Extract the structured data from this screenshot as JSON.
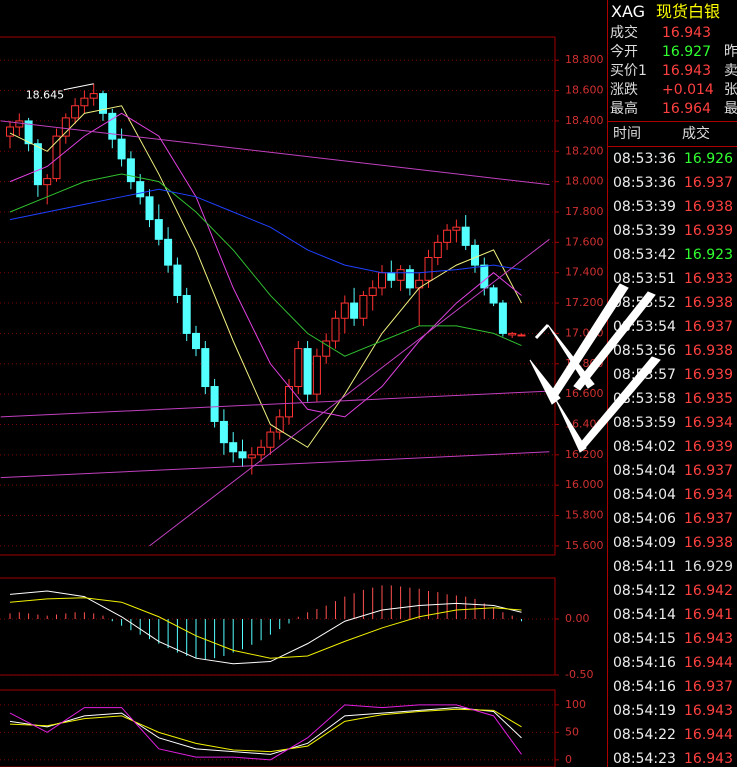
{
  "chart_data": [
    {
      "type": "candlestick",
      "up_color": "#ff3232",
      "down_color": "#54ffff",
      "open": [
        18.3,
        18.36,
        18.4,
        18.25,
        17.98,
        18.02,
        18.3,
        18.42,
        18.5,
        18.55,
        18.58,
        18.45,
        18.28,
        18.15,
        18.0,
        17.9,
        17.75,
        17.62,
        17.45,
        17.25,
        17.0,
        16.9,
        16.65,
        16.42,
        16.28,
        16.22,
        16.18,
        16.2,
        16.25,
        16.35,
        16.45,
        16.65,
        16.9,
        16.6,
        16.85,
        16.95,
        17.1,
        17.2,
        17.1,
        17.25,
        17.3,
        17.4,
        17.35,
        17.42,
        17.3,
        17.35,
        17.5,
        17.6,
        17.68,
        17.7,
        17.58,
        17.45,
        17.3,
        17.2,
        16.99,
        16.99
      ],
      "high": [
        18.4,
        18.45,
        18.42,
        18.28,
        18.05,
        18.35,
        18.45,
        18.55,
        18.6,
        18.645,
        18.6,
        18.48,
        18.35,
        18.2,
        18.05,
        17.95,
        17.85,
        17.7,
        17.5,
        17.3,
        17.05,
        16.95,
        16.7,
        16.5,
        16.35,
        16.3,
        16.25,
        16.3,
        16.38,
        16.5,
        16.7,
        16.95,
        16.95,
        16.9,
        17.0,
        17.15,
        17.25,
        17.3,
        17.28,
        17.35,
        17.45,
        17.48,
        17.45,
        17.45,
        17.4,
        17.55,
        17.65,
        17.72,
        17.75,
        17.78,
        17.62,
        17.5,
        17.32,
        17.22,
        17.01,
        17.0
      ],
      "low": [
        18.22,
        18.3,
        18.2,
        17.9,
        17.85,
        18.0,
        18.25,
        18.38,
        18.45,
        18.5,
        18.4,
        18.22,
        18.1,
        17.95,
        17.85,
        17.7,
        17.58,
        17.4,
        17.2,
        16.95,
        16.85,
        16.6,
        16.38,
        16.2,
        16.15,
        16.12,
        16.07,
        16.15,
        16.2,
        16.3,
        16.4,
        16.6,
        16.55,
        16.55,
        16.8,
        16.9,
        17.0,
        17.05,
        17.05,
        17.15,
        17.25,
        17.3,
        17.28,
        17.25,
        17.05,
        17.3,
        17.45,
        17.55,
        17.6,
        17.55,
        17.4,
        17.25,
        17.18,
        16.98,
        16.97,
        16.98
      ],
      "close": [
        18.36,
        18.4,
        18.25,
        17.98,
        18.02,
        18.3,
        18.42,
        18.5,
        18.55,
        18.58,
        18.45,
        18.28,
        18.15,
        18.0,
        17.9,
        17.75,
        17.62,
        17.45,
        17.25,
        17.0,
        16.9,
        16.65,
        16.42,
        16.28,
        16.22,
        16.18,
        16.2,
        16.25,
        16.35,
        16.45,
        16.65,
        16.9,
        16.6,
        16.85,
        16.95,
        17.1,
        17.2,
        17.1,
        17.25,
        17.3,
        17.4,
        17.35,
        17.42,
        17.3,
        17.35,
        17.5,
        17.6,
        17.68,
        17.7,
        17.58,
        17.45,
        17.3,
        17.2,
        17.0,
        17.0,
        16.99
      ],
      "series": [
        {
          "color": "#f0f080",
          "x": [
            0,
            4,
            8,
            12,
            16,
            20,
            24,
            28,
            32,
            36,
            40,
            44,
            48,
            52,
            55
          ],
          "values": [
            18.32,
            18.2,
            18.45,
            18.5,
            18.05,
            17.55,
            16.95,
            16.4,
            16.25,
            16.6,
            17.0,
            17.3,
            17.45,
            17.55,
            17.2
          ]
        },
        {
          "color": "#e040e0",
          "x": [
            0,
            4,
            8,
            12,
            16,
            20,
            24,
            28,
            32,
            36,
            40,
            44,
            48,
            52,
            55
          ],
          "values": [
            18.0,
            18.1,
            18.3,
            18.45,
            18.3,
            17.9,
            17.3,
            16.8,
            16.5,
            16.45,
            16.65,
            16.95,
            17.2,
            17.4,
            17.25
          ]
        },
        {
          "color": "#30c030",
          "x": [
            0,
            4,
            8,
            12,
            16,
            20,
            24,
            28,
            32,
            36,
            40,
            44,
            48,
            52,
            55
          ],
          "values": [
            17.8,
            17.9,
            18.0,
            18.05,
            18.0,
            17.8,
            17.55,
            17.25,
            17.0,
            16.85,
            16.95,
            17.05,
            17.05,
            17.0,
            16.92
          ]
        },
        {
          "color": "#2040ff",
          "x": [
            0,
            4,
            8,
            12,
            16,
            20,
            24,
            28,
            32,
            36,
            40,
            44,
            48,
            52,
            55
          ],
          "values": [
            17.75,
            17.8,
            17.85,
            17.9,
            17.95,
            17.9,
            17.8,
            17.7,
            17.55,
            17.45,
            17.4,
            17.4,
            17.42,
            17.45,
            17.42
          ]
        },
        {
          "color": "#c040c0",
          "x": [
            -1,
            58
          ],
          "values": [
            18.4,
            17.98
          ]
        },
        {
          "color": "#c040c0",
          "x": [
            -1,
            58
          ],
          "values": [
            16.45,
            16.62
          ]
        },
        {
          "color": "#c040c0",
          "x": [
            -1,
            58
          ],
          "values": [
            16.05,
            16.22
          ]
        },
        {
          "color": "#c040c0",
          "x": [
            15,
            58
          ],
          "values": [
            15.6,
            17.62
          ]
        }
      ],
      "annotation": "18.645",
      "ylim": [
        15.54,
        18.953
      ],
      "yticks": [
        {
          "value": 15.6,
          "label": "15.600"
        },
        {
          "value": 15.8,
          "label": "15.800"
        },
        {
          "value": 16.0,
          "label": "16.000"
        },
        {
          "value": 16.2,
          "label": "16.200"
        },
        {
          "value": 16.4,
          "label": "16.400"
        },
        {
          "value": 16.6,
          "label": "16.600"
        },
        {
          "value": 16.8,
          "label": "16.800"
        },
        {
          "value": 17.0,
          "label": "17.000"
        },
        {
          "value": 17.2,
          "label": "17.200"
        },
        {
          "value": 17.4,
          "label": "17.400"
        },
        {
          "value": 17.6,
          "label": "17.600"
        },
        {
          "value": 17.8,
          "label": "17.800"
        },
        {
          "value": 18.0,
          "label": "18.000"
        },
        {
          "value": 18.2,
          "label": "18.200"
        },
        {
          "value": 18.4,
          "label": "18.400"
        },
        {
          "value": 18.6,
          "label": "18.600"
        },
        {
          "value": 18.8,
          "label": "18.800"
        }
      ],
      "grid": true
    },
    {
      "type": "macd",
      "up_color": "#ff5050",
      "down_color": "#54ffff",
      "values": [
        0.05,
        0.06,
        0.05,
        0.04,
        0.03,
        0.04,
        0.05,
        0.06,
        0.06,
        0.05,
        0.03,
        -0.02,
        -0.06,
        -0.1,
        -0.14,
        -0.18,
        -0.22,
        -0.26,
        -0.3,
        -0.33,
        -0.35,
        -0.36,
        -0.35,
        -0.33,
        -0.3,
        -0.27,
        -0.23,
        -0.19,
        -0.14,
        -0.09,
        -0.04,
        0.02,
        0.06,
        0.09,
        0.12,
        0.16,
        0.2,
        0.23,
        0.26,
        0.28,
        0.3,
        0.3,
        0.29,
        0.28,
        0.27,
        0.25,
        0.24,
        0.22,
        0.21,
        0.2,
        0.18,
        0.14,
        0.1,
        0.06,
        0.03,
        -0.02
      ],
      "series": [
        {
          "color": "#ffffff",
          "x": [
            0,
            4,
            8,
            12,
            16,
            20,
            24,
            28,
            32,
            36,
            40,
            44,
            48,
            52,
            55
          ],
          "values": [
            0.22,
            0.25,
            0.2,
            0.02,
            -0.2,
            -0.35,
            -0.4,
            -0.38,
            -0.22,
            -0.02,
            0.08,
            0.12,
            0.14,
            0.12,
            0.06
          ]
        },
        {
          "color": "#f0f000",
          "x": [
            0,
            4,
            8,
            12,
            16,
            20,
            24,
            28,
            32,
            36,
            40,
            44,
            48,
            52,
            55
          ],
          "values": [
            0.15,
            0.18,
            0.19,
            0.15,
            0.02,
            -0.15,
            -0.28,
            -0.35,
            -0.33,
            -0.2,
            -0.08,
            0.02,
            0.08,
            0.1,
            0.08
          ]
        }
      ],
      "ylim": [
        -0.5,
        0.366
      ],
      "yticks": [
        {
          "value": -0.5,
          "label": "-0.50"
        },
        {
          "value": 0,
          "label": "0.00"
        }
      ],
      "grid": true
    },
    {
      "type": "kdj",
      "series": [
        {
          "color": "#ffffff",
          "x": [
            0,
            4,
            8,
            12,
            16,
            20,
            24,
            28,
            32,
            36,
            40,
            44,
            48,
            52,
            55
          ],
          "values": [
            70,
            60,
            80,
            85,
            40,
            20,
            15,
            10,
            30,
            80,
            85,
            90,
            95,
            88,
            40
          ]
        },
        {
          "color": "#f0f000",
          "x": [
            0,
            4,
            8,
            12,
            16,
            20,
            24,
            28,
            32,
            36,
            40,
            44,
            48,
            52,
            55
          ],
          "values": [
            65,
            62,
            75,
            80,
            50,
            30,
            18,
            15,
            25,
            70,
            82,
            88,
            92,
            90,
            60
          ]
        },
        {
          "color": "#e020e0",
          "x": [
            0,
            4,
            8,
            12,
            16,
            20,
            24,
            28,
            32,
            36,
            40,
            44,
            48,
            52,
            55
          ],
          "values": [
            85,
            50,
            95,
            95,
            20,
            5,
            5,
            0,
            40,
            100,
            95,
            100,
            100,
            80,
            10
          ]
        }
      ],
      "ylim": [
        -13,
        127
      ],
      "yticks": [
        0,
        50,
        100
      ],
      "grid": true
    }
  ],
  "quote": {
    "symbol": "XAG",
    "name": "现货白银",
    "rows": [
      {
        "label": "成交",
        "value": "16.943",
        "color": "#ff4040",
        "extra": ""
      },
      {
        "label": "今开",
        "value": "16.927",
        "color": "#30ff30",
        "extra": "昨"
      },
      {
        "label": "买价1",
        "value": "16.943",
        "color": "#ff4040",
        "extra": "卖"
      },
      {
        "label": "涨跌",
        "value": "+0.014",
        "color": "#ff4040",
        "extra": "张"
      },
      {
        "label": "最高",
        "value": "16.964",
        "color": "#ff4040",
        "extra": "最"
      }
    ]
  },
  "trades": {
    "headers": [
      "时间",
      "成交"
    ],
    "rows": [
      [
        "08:53:36",
        "16.926",
        "#30ff30"
      ],
      [
        "08:53:36",
        "16.937",
        "#ff4040"
      ],
      [
        "08:53:39",
        "16.938",
        "#ff4040"
      ],
      [
        "08:53:39",
        "16.939",
        "#ff4040"
      ],
      [
        "08:53:42",
        "16.923",
        "#30ff30"
      ],
      [
        "08:53:51",
        "16.933",
        "#ff4040"
      ],
      [
        "08:53:52",
        "16.938",
        "#ff4040"
      ],
      [
        "08:53:54",
        "16.937",
        "#ff4040"
      ],
      [
        "08:53:56",
        "16.938",
        "#ff4040"
      ],
      [
        "08:53:57",
        "16.939",
        "#ff4040"
      ],
      [
        "08:53:58",
        "16.935",
        "#ff4040"
      ],
      [
        "08:53:59",
        "16.934",
        "#ff4040"
      ],
      [
        "08:54:02",
        "16.939",
        "#ff4040"
      ],
      [
        "08:54:04",
        "16.937",
        "#ff4040"
      ],
      [
        "08:54:04",
        "16.934",
        "#ff4040"
      ],
      [
        "08:54:06",
        "16.937",
        "#ff4040"
      ],
      [
        "08:54:09",
        "16.938",
        "#ff4040"
      ],
      [
        "08:54:11",
        "16.929",
        "#dddddd"
      ],
      [
        "08:54:12",
        "16.942",
        "#ff4040"
      ],
      [
        "08:54:14",
        "16.941",
        "#ff4040"
      ],
      [
        "08:54:15",
        "16.943",
        "#ff4040"
      ],
      [
        "08:54:16",
        "16.944",
        "#ff4040"
      ],
      [
        "08:54:16",
        "16.937",
        "#ff4040"
      ],
      [
        "08:54:19",
        "16.943",
        "#ff4040"
      ],
      [
        "08:54:22",
        "16.944",
        "#ff4040"
      ],
      [
        "08:54:23",
        "16.943",
        "#ff4040"
      ]
    ]
  }
}
